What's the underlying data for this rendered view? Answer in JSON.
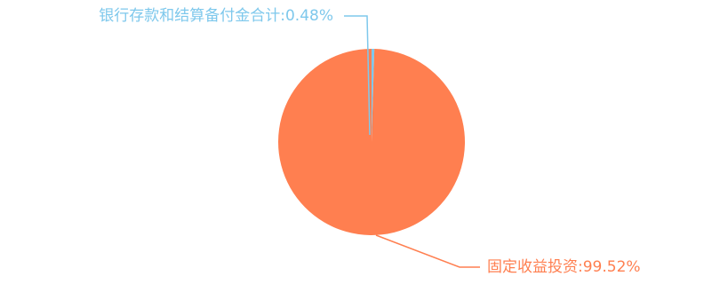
{
  "chart_data": {
    "type": "pie",
    "slices": [
      {
        "name": "银行存款和结算备付金合计",
        "value": 0.48,
        "label": "银行存款和结算备付金合计:0.48%",
        "color": "#7ec8ec"
      },
      {
        "name": "固定收益投资",
        "value": 99.52,
        "label": "固定收益投资:99.52%",
        "color": "#ff7f50"
      }
    ]
  }
}
